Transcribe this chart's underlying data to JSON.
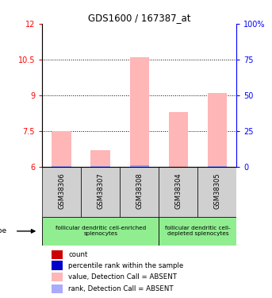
{
  "title": "GDS1600 / 167387_at",
  "samples": [
    "GSM38306",
    "GSM38307",
    "GSM38308",
    "GSM38304",
    "GSM38305"
  ],
  "pink_values": [
    7.5,
    6.7,
    10.6,
    8.3,
    9.1
  ],
  "blue_values": [
    6.05,
    6.05,
    6.08,
    6.03,
    6.05
  ],
  "ylim_left": [
    6,
    12
  ],
  "ylim_right": [
    0,
    100
  ],
  "yticks_left": [
    6,
    7.5,
    9,
    10.5,
    12
  ],
  "ytick_labels_left": [
    "6",
    "7.5",
    "9",
    "10.5",
    "12"
  ],
  "yticks_right": [
    0,
    25,
    50,
    75,
    100
  ],
  "ytick_labels_right": [
    "0",
    "25",
    "50",
    "75",
    "100%"
  ],
  "pink_color": "#FFB6B6",
  "blue_bar_color": "#9999FF",
  "sample_box_color": "#D0D0D0",
  "green_color": "#90EE90",
  "background_color": "#FFFFFF",
  "bar_width": 0.5,
  "group1_label_line1": "follicular dendritic cell-enriched",
  "group1_label_line2": "splenocytes",
  "group2_label_line1": "follicular dendritic cell-",
  "group2_label_line2": "depleted splenocytes",
  "legend_items": [
    {
      "color": "#CC0000",
      "label": "count"
    },
    {
      "color": "#0000CC",
      "label": "percentile rank within the sample"
    },
    {
      "color": "#FFB6B6",
      "label": "value, Detection Call = ABSENT"
    },
    {
      "color": "#AAAAFF",
      "label": "rank, Detection Call = ABSENT"
    }
  ]
}
